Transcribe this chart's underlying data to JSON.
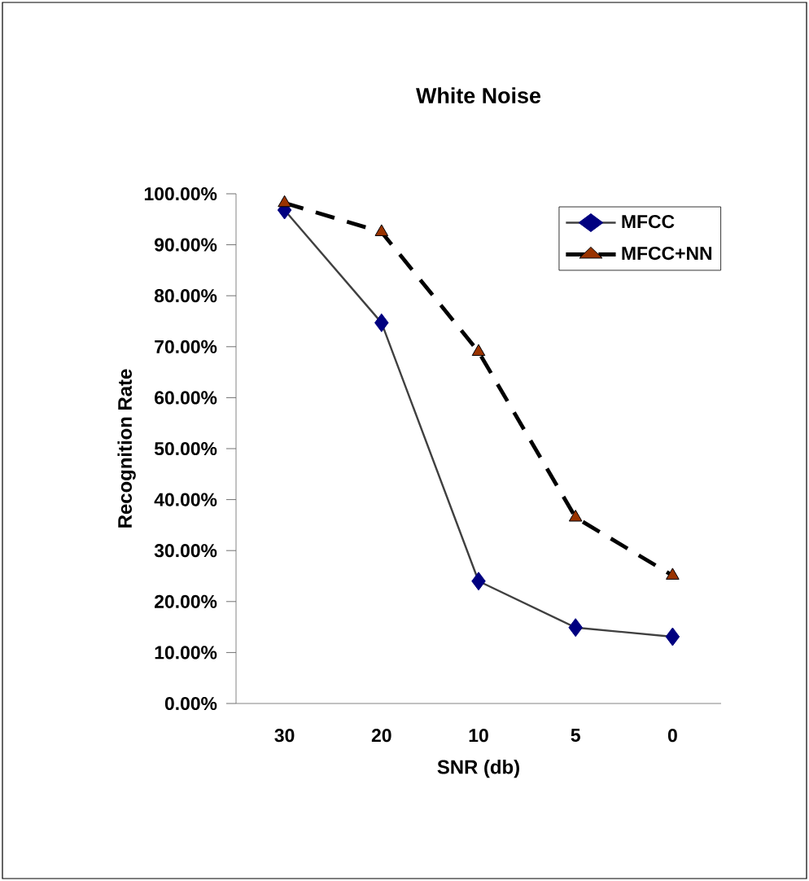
{
  "chart_data": {
    "type": "line",
    "title": "White Noise",
    "xlabel": "SNR (db)",
    "ylabel": "Recognition Rate",
    "categories": [
      "30",
      "20",
      "10",
      "5",
      "0"
    ],
    "series": [
      {
        "name": "MFCC",
        "color": "#000080",
        "marker": "diamond",
        "line_style": "solid",
        "values": [
          96.8,
          74.7,
          24.0,
          14.9,
          13.1
        ]
      },
      {
        "name": "MFCC+NN",
        "color": "#993300",
        "marker": "triangle",
        "line_style": "dashed",
        "values": [
          98.2,
          92.5,
          69.0,
          36.5,
          25.1
        ]
      }
    ],
    "ylim": [
      0,
      100
    ],
    "yticks": [
      {
        "value": 0,
        "label": "0.00%"
      },
      {
        "value": 10,
        "label": "10.00%"
      },
      {
        "value": 20,
        "label": "20.00%"
      },
      {
        "value": 30,
        "label": "30.00%"
      },
      {
        "value": 40,
        "label": "40.00%"
      },
      {
        "value": 50,
        "label": "50.00%"
      },
      {
        "value": 60,
        "label": "60.00%"
      },
      {
        "value": 70,
        "label": "70.00%"
      },
      {
        "value": 80,
        "label": "80.00%"
      },
      {
        "value": 90,
        "label": "90.00%"
      },
      {
        "value": 100,
        "label": "100.00%"
      }
    ],
    "grid": false,
    "legend": "top right"
  }
}
